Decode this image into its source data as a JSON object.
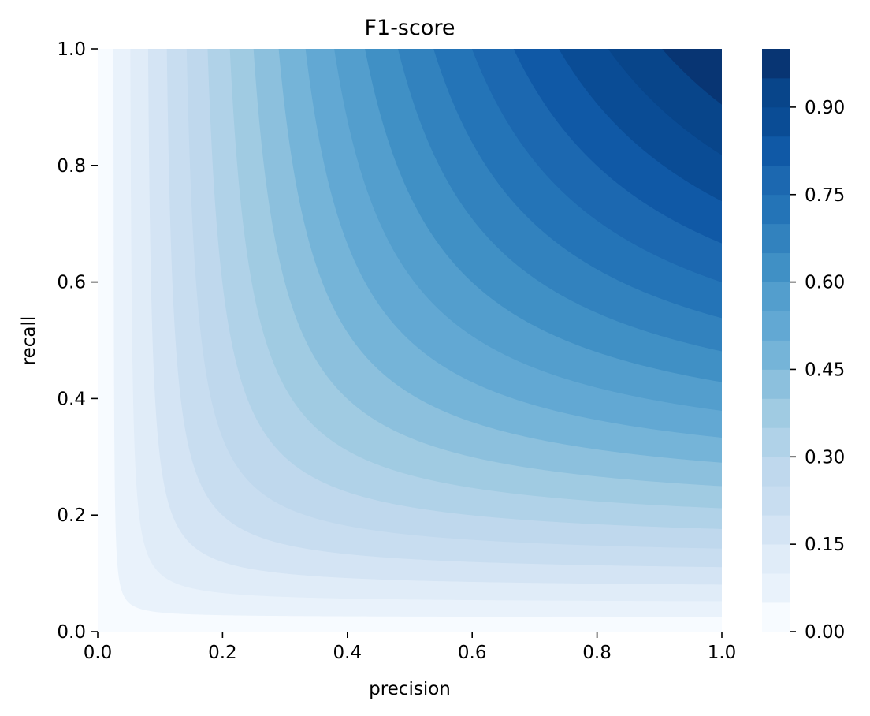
{
  "chart_data": {
    "type": "contour",
    "title": "F1-score",
    "xlabel": "precision",
    "ylabel": "recall",
    "xlim": [
      0.0,
      1.0
    ],
    "ylim": [
      0.0,
      1.0
    ],
    "x_ticks": [
      "0.0",
      "0.2",
      "0.4",
      "0.6",
      "0.8",
      "1.0"
    ],
    "y_ticks": [
      "0.0",
      "0.2",
      "0.4",
      "0.6",
      "0.8",
      "1.0"
    ],
    "function": "2*precision*recall/(precision+recall)",
    "contour_levels": [
      0.0,
      0.05,
      0.1,
      0.15,
      0.2,
      0.25,
      0.3,
      0.35,
      0.4,
      0.45,
      0.5,
      0.55,
      0.6,
      0.65,
      0.7,
      0.75,
      0.8,
      0.85,
      0.9,
      0.95,
      1.0
    ],
    "colormap": "Blues",
    "level_colors": [
      "#f7fbff",
      "#e9f2fb",
      "#e0ecf8",
      "#d4e4f4",
      "#c8ddf0",
      "#bfd8ed",
      "#b0d2e8",
      "#a0cbe2",
      "#8cc0dd",
      "#75b4d8",
      "#62a8d3",
      "#539ecd",
      "#4090c5",
      "#3282be",
      "#2474b7",
      "#1c68b0",
      "#1059a6",
      "#0a4c95",
      "#08458a",
      "#083573"
    ],
    "colorbar": {
      "ticks": [
        "0.00",
        "0.15",
        "0.30",
        "0.45",
        "0.60",
        "0.75",
        "0.90"
      ]
    },
    "grid": false,
    "legend": "none"
  }
}
